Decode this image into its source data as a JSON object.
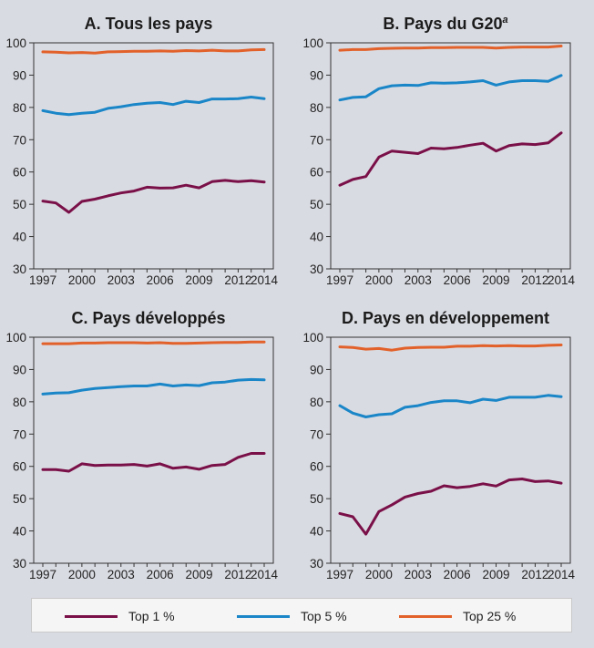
{
  "colors": {
    "top1": "#7a1048",
    "top5": "#1a86c8",
    "top25": "#e2612a"
  },
  "legend": [
    {
      "key": "top1",
      "label": "Top 1 %"
    },
    {
      "key": "top5",
      "label": "Top 5 %"
    },
    {
      "key": "top25",
      "label": "Top 25 %"
    }
  ],
  "chart_data": [
    {
      "type": "line",
      "title": "A. Tous les pays",
      "x": [
        1997,
        1998,
        1999,
        2000,
        2001,
        2002,
        2003,
        2004,
        2005,
        2006,
        2007,
        2008,
        2009,
        2010,
        2011,
        2012,
        2013,
        2014
      ],
      "xticks": [
        "1997",
        "2000",
        "2003",
        "2006",
        "2009",
        "2012",
        "2014"
      ],
      "ylim": [
        30,
        100
      ],
      "yticks": [
        "30",
        "40",
        "50",
        "60",
        "70",
        "80",
        "90",
        "100"
      ],
      "series": [
        {
          "name": "Top 1 %",
          "key": "top1",
          "values": [
            51.0,
            50.4,
            47.5,
            50.9,
            51.6,
            52.6,
            53.5,
            54.1,
            55.3,
            55.0,
            55.1,
            55.9,
            55.1,
            57.0,
            57.4,
            57.0,
            57.3,
            56.9
          ]
        },
        {
          "name": "Top 5 %",
          "key": "top5",
          "values": [
            79.0,
            78.2,
            77.8,
            78.2,
            78.5,
            79.7,
            80.2,
            80.9,
            81.3,
            81.5,
            80.9,
            81.9,
            81.5,
            82.6,
            82.6,
            82.7,
            83.2,
            82.7
          ]
        },
        {
          "name": "Top 25 %",
          "key": "top25",
          "values": [
            97.2,
            97.1,
            96.9,
            97.0,
            96.8,
            97.2,
            97.3,
            97.4,
            97.4,
            97.5,
            97.4,
            97.6,
            97.5,
            97.7,
            97.5,
            97.5,
            97.8,
            97.9
          ]
        }
      ]
    },
    {
      "type": "line",
      "title": "B. Pays du G20",
      "title_sup": "a",
      "x": [
        1997,
        1998,
        1999,
        2000,
        2001,
        2002,
        2003,
        2004,
        2005,
        2006,
        2007,
        2008,
        2009,
        2010,
        2011,
        2012,
        2013,
        2014
      ],
      "xticks": [
        "1997",
        "2000",
        "2003",
        "2006",
        "2009",
        "2012",
        "2014"
      ],
      "ylim": [
        30,
        100
      ],
      "yticks": [
        "30",
        "40",
        "50",
        "60",
        "70",
        "80",
        "90",
        "100"
      ],
      "series": [
        {
          "name": "Top 1 %",
          "key": "top1",
          "values": [
            55.9,
            57.7,
            58.6,
            64.6,
            66.5,
            66.1,
            65.7,
            67.4,
            67.2,
            67.6,
            68.3,
            68.9,
            66.5,
            68.2,
            68.7,
            68.5,
            69.0,
            72.1
          ]
        },
        {
          "name": "Top 5 %",
          "key": "top5",
          "values": [
            82.3,
            83.1,
            83.3,
            85.8,
            86.7,
            86.9,
            86.8,
            87.6,
            87.5,
            87.6,
            87.9,
            88.3,
            86.9,
            87.9,
            88.3,
            88.3,
            88.1,
            89.9
          ]
        },
        {
          "name": "Top 25 %",
          "key": "top25",
          "values": [
            97.7,
            97.9,
            97.9,
            98.2,
            98.3,
            98.4,
            98.4,
            98.5,
            98.5,
            98.6,
            98.6,
            98.6,
            98.4,
            98.6,
            98.7,
            98.7,
            98.7,
            99.0
          ]
        }
      ]
    },
    {
      "type": "line",
      "title": "C. Pays développés",
      "x": [
        1997,
        1998,
        1999,
        2000,
        2001,
        2002,
        2003,
        2004,
        2005,
        2006,
        2007,
        2008,
        2009,
        2010,
        2011,
        2012,
        2013,
        2014
      ],
      "xticks": [
        "1997",
        "2000",
        "2003",
        "2006",
        "2009",
        "2012",
        "2014"
      ],
      "ylim": [
        30,
        100
      ],
      "yticks": [
        "30",
        "40",
        "50",
        "60",
        "70",
        "80",
        "90",
        "100"
      ],
      "series": [
        {
          "name": "Top 1 %",
          "key": "top1",
          "values": [
            59.0,
            59.0,
            58.5,
            60.8,
            60.3,
            60.4,
            60.4,
            60.6,
            60.1,
            60.8,
            59.4,
            59.8,
            59.1,
            60.3,
            60.6,
            62.8,
            64.0,
            64.0
          ]
        },
        {
          "name": "Top 5 %",
          "key": "top5",
          "values": [
            82.4,
            82.7,
            82.8,
            83.6,
            84.1,
            84.4,
            84.7,
            84.9,
            84.9,
            85.5,
            84.9,
            85.2,
            85.0,
            85.9,
            86.1,
            86.7,
            86.9,
            86.8
          ]
        },
        {
          "name": "Top 25 %",
          "key": "top25",
          "values": [
            98.0,
            98.0,
            98.0,
            98.2,
            98.2,
            98.3,
            98.3,
            98.3,
            98.2,
            98.3,
            98.1,
            98.1,
            98.2,
            98.3,
            98.4,
            98.4,
            98.5,
            98.5
          ]
        }
      ]
    },
    {
      "type": "line",
      "title": "D. Pays en développement",
      "x": [
        1997,
        1998,
        1999,
        2000,
        2001,
        2002,
        2003,
        2004,
        2005,
        2006,
        2007,
        2008,
        2009,
        2010,
        2011,
        2012,
        2013,
        2014
      ],
      "xticks": [
        "1997",
        "2000",
        "2003",
        "2006",
        "2009",
        "2012",
        "2014"
      ],
      "ylim": [
        30,
        100
      ],
      "yticks": [
        "30",
        "40",
        "50",
        "60",
        "70",
        "80",
        "90",
        "100"
      ],
      "series": [
        {
          "name": "Top 1 %",
          "key": "top1",
          "values": [
            45.4,
            44.4,
            39.0,
            46.0,
            48.1,
            50.5,
            51.6,
            52.3,
            54.0,
            53.4,
            53.8,
            54.6,
            53.9,
            55.8,
            56.1,
            55.3,
            55.5,
            54.8
          ]
        },
        {
          "name": "Top 5 %",
          "key": "top5",
          "values": [
            78.8,
            76.5,
            75.3,
            76.0,
            76.3,
            78.3,
            78.8,
            79.8,
            80.3,
            80.3,
            79.7,
            80.8,
            80.4,
            81.4,
            81.4,
            81.4,
            82.0,
            81.6
          ]
        },
        {
          "name": "Top 25 %",
          "key": "top25",
          "values": [
            97.0,
            96.8,
            96.3,
            96.5,
            96.0,
            96.6,
            96.8,
            96.9,
            96.9,
            97.2,
            97.2,
            97.4,
            97.3,
            97.4,
            97.3,
            97.3,
            97.5,
            97.6
          ]
        }
      ]
    }
  ]
}
